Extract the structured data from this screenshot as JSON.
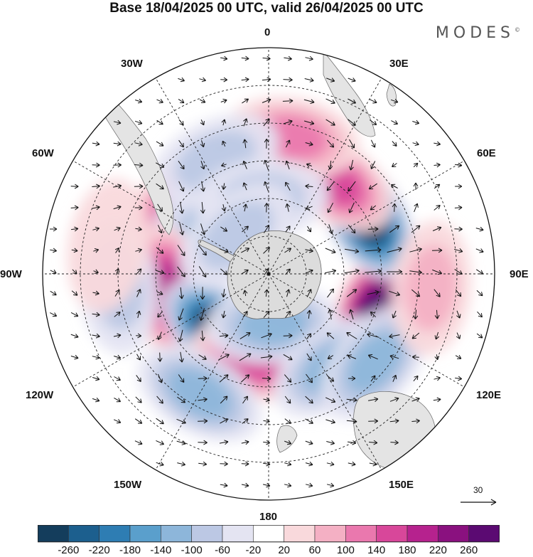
{
  "title": "Base 18/04/2025 00 UTC, valid 26/04/2025 00 UTC",
  "brand": "MODES",
  "brand_mark": "©",
  "longitude_labels": {
    "lon_0": "0",
    "lon_30e": "30E",
    "lon_60e": "60E",
    "lon_90e": "90E",
    "lon_120e": "120E",
    "lon_150e": "150E",
    "lon_180": "180",
    "lon_150w": "150W",
    "lon_120w": "120W",
    "lon_90w": "90W",
    "lon_60w": "60W",
    "lon_30w": "30W"
  },
  "vector_reference": "30",
  "colorbar": {
    "ticks": [
      "-260",
      "-220",
      "-180",
      "-140",
      "-100",
      "-60",
      "-20",
      "20",
      "60",
      "100",
      "140",
      "180",
      "220",
      "260"
    ],
    "colors": [
      "#143d5c",
      "#1c5f8e",
      "#2e7db3",
      "#5a9fcc",
      "#8db6da",
      "#bcc8e4",
      "#e4e4f2",
      "#ffffff",
      "#f9d9dc",
      "#f4b0c4",
      "#ea78ae",
      "#d8479a",
      "#b6228e",
      "#8a117f",
      "#5b0a72"
    ]
  },
  "colors": {
    "land": "#dcdcdc",
    "coastline": "#666666"
  },
  "anomalies": [
    {
      "lon": 110,
      "lat": -45,
      "value": 270,
      "name": "anomaly-high-90e"
    },
    {
      "lon": 60,
      "lat": -45,
      "value": -260,
      "name": "anomaly-low-60e"
    },
    {
      "lon": 35,
      "lat": -45,
      "value": 140,
      "name": "anomaly-high-40e"
    },
    {
      "lon": 10,
      "lat": -35,
      "value": 130,
      "name": "anomaly-high-20e"
    },
    {
      "lon": -55,
      "lat": -45,
      "value": 150,
      "name": "anomaly-high-60w"
    },
    {
      "lon": -45,
      "lat": -55,
      "value": -110,
      "name": "anomaly-low-45w"
    },
    {
      "lon": -70,
      "lat": -60,
      "value": -120,
      "name": "anomaly-low-70w"
    },
    {
      "lon": -100,
      "lat": -50,
      "value": 200,
      "name": "anomaly-high-100w"
    },
    {
      "lon": -140,
      "lat": -60,
      "value": -270,
      "name": "anomaly-low-140w"
    },
    {
      "lon": -170,
      "lat": -55,
      "value": 160,
      "name": "anomaly-high-170w"
    },
    {
      "lon": 175,
      "lat": -70,
      "value": -100,
      "name": "anomaly-low-175e"
    },
    {
      "lon": -150,
      "lat": -35,
      "value": -120,
      "name": "anomaly-low-150w"
    },
    {
      "lon": 145,
      "lat": -45,
      "value": -110,
      "name": "anomaly-low-145e"
    },
    {
      "lon": 130,
      "lat": -35,
      "value": -120,
      "name": "anomaly-low-130e"
    },
    {
      "lon": -25,
      "lat": -40,
      "value": -80,
      "name": "anomaly-low-25w"
    },
    {
      "lon": -95,
      "lat": -30,
      "value": -90,
      "name": "anomaly-low-95w"
    },
    {
      "lon": 95,
      "lat": -25,
      "value": 60,
      "name": "anomaly-high-95e"
    },
    {
      "lon": -80,
      "lat": -25,
      "value": 50,
      "name": "anomaly-high-80w"
    },
    {
      "lon": -5,
      "lat": -60,
      "value": -60,
      "name": "anomaly-low-5w"
    },
    {
      "lon": -40,
      "lat": -70,
      "value": -60,
      "name": "anomaly-low-40w"
    }
  ]
}
